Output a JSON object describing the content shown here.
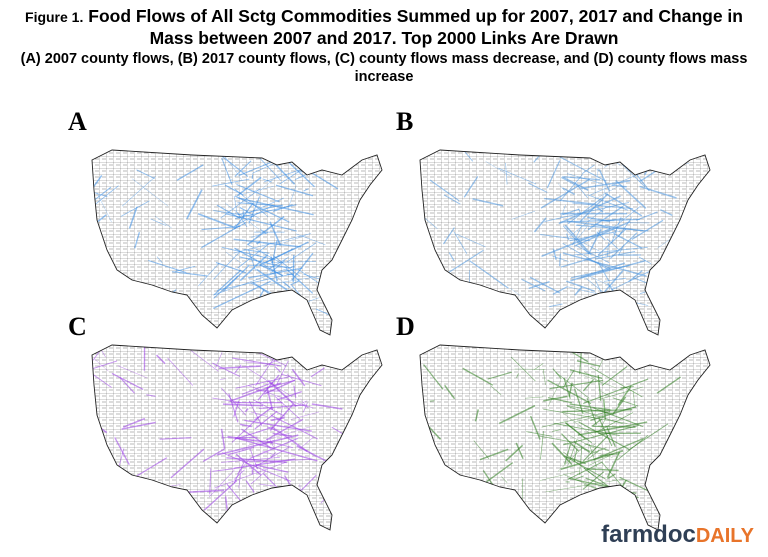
{
  "header": {
    "prefix": "Figure 1.",
    "title": "Food Flows of All Sctg Commodities Summed up for 2007, 2017 and Change in Mass between 2007 and 2017. Top 2000 Links Are Drawn",
    "subtitle": "(A) 2007 county flows, (B) 2017 county flows, (C) county flows mass decrease, and (D) county flows mass increase"
  },
  "panels": [
    {
      "label": "A"
    },
    {
      "label": "B"
    },
    {
      "label": "C"
    },
    {
      "label": "D"
    }
  ],
  "logo": {
    "main": "farmdoc",
    "accent": "DAILY"
  }
}
